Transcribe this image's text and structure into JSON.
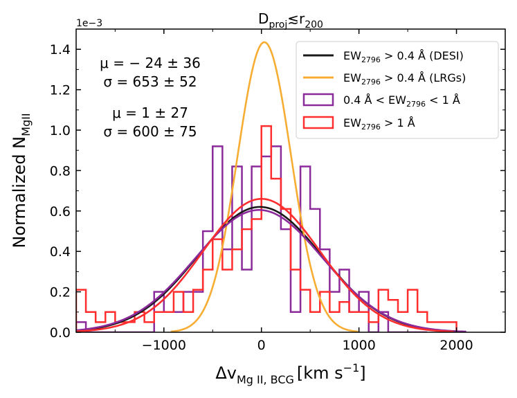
{
  "chart_data": {
    "type": "histogram",
    "title": "D_proj ≲ r_200",
    "title_parts": {
      "main": "D",
      "sub1": "proj",
      "rel": "≲",
      "r": "r",
      "sub2": "200"
    },
    "scale_label": "1e−3",
    "xlabel_parts": {
      "main": "Δv",
      "sub": "Mg II, BCG",
      "unit": "[km s",
      "sup": "−1",
      "close": "]"
    },
    "ylabel_parts": {
      "main": "Normalized N",
      "sub": "MgII"
    },
    "xlim": [
      -1900,
      2500
    ],
    "ylim": [
      0,
      1.5
    ],
    "x_ticks": [
      -1000,
      0,
      1000,
      2000
    ],
    "x_tick_labels": [
      "−1000",
      "0",
      "1000",
      "2000"
    ],
    "y_ticks": [
      0.0,
      0.2,
      0.4,
      0.6,
      0.8,
      1.0,
      1.2,
      1.4
    ],
    "y_tick_labels": [
      "0.0",
      "0.2",
      "0.4",
      "0.6",
      "0.8",
      "1.0",
      "1.2",
      "1.4"
    ],
    "annotations": [
      {
        "text": "μ = − 24 ± 36",
        "color": "#8b1a89"
      },
      {
        "text": "σ = 653 ± 52",
        "color": "#8b1a89"
      },
      {
        "text": "μ = 1 ± 27",
        "color": "#ff1a1a"
      },
      {
        "text": "σ = 600 ± 75",
        "color": "#ff1a1a"
      }
    ],
    "legend": {
      "position": "top-right",
      "entries": [
        {
          "pre": "EW",
          "sub": "2796",
          "post": " > 0.4 Å (DESI)",
          "color": "#1a1a1a",
          "kind": "line"
        },
        {
          "pre": "EW",
          "sub": "2796",
          "post": " > 0.4 Å (LRGs)",
          "color": "#f7ad33",
          "kind": "line"
        },
        {
          "pre": "0.4 Å < EW",
          "sub": "2796",
          "post": " < 1 Å",
          "color": "#8b2a9a",
          "kind": "box"
        },
        {
          "pre": "EW",
          "sub": "2796",
          "post": " > 1 Å",
          "color": "#ff2d2d",
          "kind": "box"
        }
      ]
    },
    "gaussians": [
      {
        "name": "EW2796 > 0.4 Å (DESI)",
        "color": "#1a1a1a",
        "amp": 0.62,
        "mu": -15,
        "sigma": 640
      },
      {
        "name": "EW2796 > 0.4 Å (LRGs)",
        "color": "#f7ad33",
        "amp": 1.435,
        "mu": 30,
        "sigma": 275
      },
      {
        "name": "0.4 Å < EW2796 < 1 Å",
        "color": "#8b2a9a",
        "amp": 0.605,
        "mu": -24,
        "sigma": 653
      },
      {
        "name": "EW2796 > 1 Å",
        "color": "#ff2d2d",
        "amp": 0.66,
        "mu": 1,
        "sigma": 600
      }
    ],
    "histograms": [
      {
        "name": "0.4 Å < EW2796 < 1 Å",
        "color": "#8b2a9a",
        "bin_edges": [
          -1900,
          -1800,
          -1700,
          -1600,
          -1500,
          -1400,
          -1300,
          -1200,
          -1100,
          -1000,
          -900,
          -800,
          -700,
          -600,
          -500,
          -400,
          -300,
          -200,
          -100,
          0,
          100,
          200,
          300,
          400,
          500,
          600,
          700,
          800,
          900,
          1000,
          1100,
          1200,
          1300,
          1400,
          1500,
          1600,
          1700
        ],
        "values": [
          0.05,
          0.0,
          0.0,
          0.0,
          0.0,
          0.0,
          0.0,
          0.0,
          0.2,
          0.1,
          0.1,
          0.2,
          0.2,
          0.5,
          0.92,
          0.41,
          0.82,
          0.31,
          0.82,
          0.87,
          0.92,
          0.51,
          0.1,
          0.82,
          0.61,
          0.41,
          0.2,
          0.31,
          0.1,
          0.2,
          0.0,
          0.1,
          0.0,
          0.0,
          0.0,
          0.0
        ]
      },
      {
        "name": "EW2796 > 1 Å",
        "color": "#ff2d2d",
        "bin_edges": [
          -1900,
          -1800,
          -1700,
          -1600,
          -1500,
          -1400,
          -1300,
          -1200,
          -1100,
          -1000,
          -900,
          -800,
          -700,
          -600,
          -500,
          -400,
          -300,
          -200,
          -100,
          0,
          100,
          200,
          300,
          400,
          500,
          600,
          700,
          800,
          900,
          1000,
          1100,
          1200,
          1300,
          1400,
          1500,
          1600,
          1700,
          1800,
          1900,
          2000
        ],
        "values": [
          0.21,
          0.1,
          0.05,
          0.1,
          0.05,
          0.05,
          0.1,
          0.05,
          0.1,
          0.1,
          0.2,
          0.1,
          0.21,
          0.31,
          0.46,
          0.31,
          0.41,
          0.51,
          0.56,
          1.02,
          0.76,
          0.61,
          0.31,
          0.21,
          0.1,
          0.2,
          0.1,
          0.15,
          0.1,
          0.1,
          0.05,
          0.21,
          0.16,
          0.1,
          0.21,
          0.1,
          0.05,
          0.05,
          0.05
        ]
      }
    ]
  }
}
